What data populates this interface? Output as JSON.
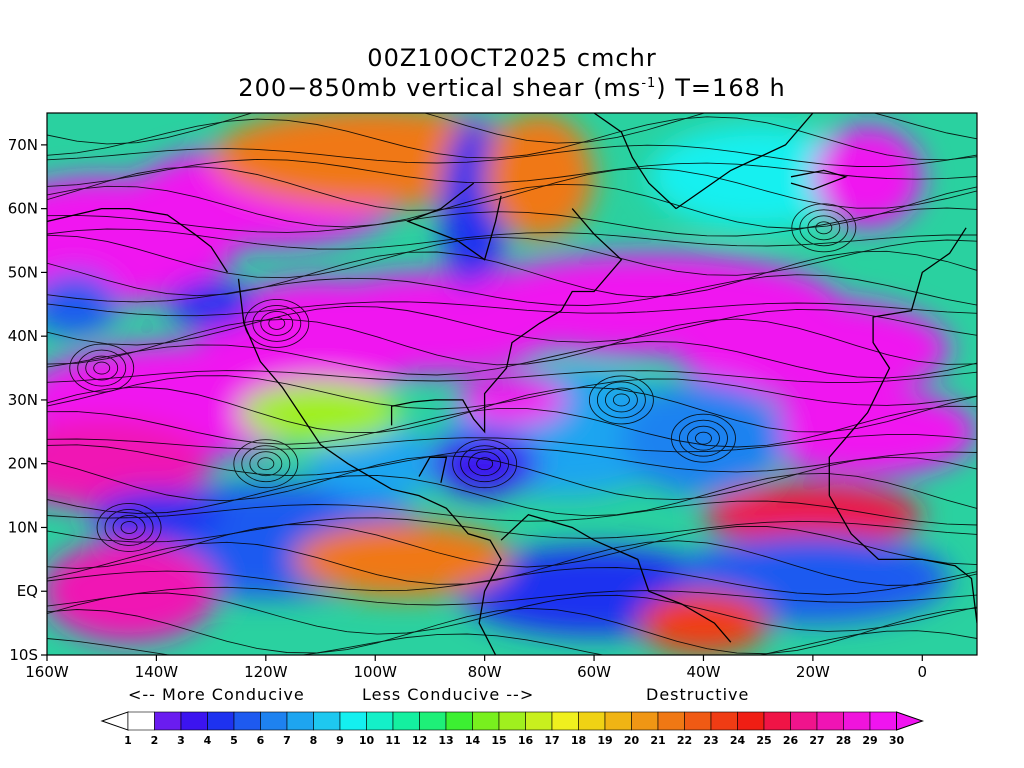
{
  "title": {
    "line1": "00Z10OCT2025 cmchr",
    "line2_pre": "200−850mb vertical shear (ms",
    "line2_sup": "-1",
    "line2_post": ") T=168 h"
  },
  "axes": {
    "lat_labels": [
      "70N",
      "60N",
      "50N",
      "40N",
      "30N",
      "20N",
      "10N",
      "EQ",
      "10S"
    ],
    "lon_labels": [
      "160W",
      "140W",
      "120W",
      "100W",
      "80W",
      "60W",
      "40W",
      "20W",
      "0"
    ]
  },
  "map": {
    "lat_range": [
      -10,
      75
    ],
    "lon_range": [
      -160,
      10
    ],
    "field": "200-850mb vertical shear",
    "overlay": "streamlines"
  },
  "legend": {
    "more_conducive": "<-- More Conducive",
    "less_conducive": "Less Conducive -->",
    "destructive": "Destructive",
    "ticks": [
      "1",
      "2",
      "3",
      "4",
      "5",
      "6",
      "7",
      "8",
      "9",
      "10",
      "11",
      "12",
      "13",
      "14",
      "15",
      "16",
      "17",
      "18",
      "19",
      "20",
      "21",
      "22",
      "23",
      "24",
      "25",
      "26",
      "27",
      "28",
      "29",
      "30"
    ],
    "colors": [
      "#ffffff",
      "#6a1cf0",
      "#3c14f0",
      "#1e32f0",
      "#1e5af0",
      "#1e82f0",
      "#1ea5f0",
      "#1ec8f0",
      "#14f0f0",
      "#14f0c8",
      "#14f0a0",
      "#1ef078",
      "#3cf032",
      "#78f01e",
      "#a0f01e",
      "#c8f01e",
      "#f0f01e",
      "#f0d214",
      "#f0b414",
      "#f09614",
      "#f07814",
      "#f05a14",
      "#f03c14",
      "#f01e14",
      "#f01446",
      "#f0148c",
      "#f014b4",
      "#f014dc",
      "#f014f0"
    ],
    "under_color": "#ffffff",
    "over_color": "#f014f0"
  }
}
